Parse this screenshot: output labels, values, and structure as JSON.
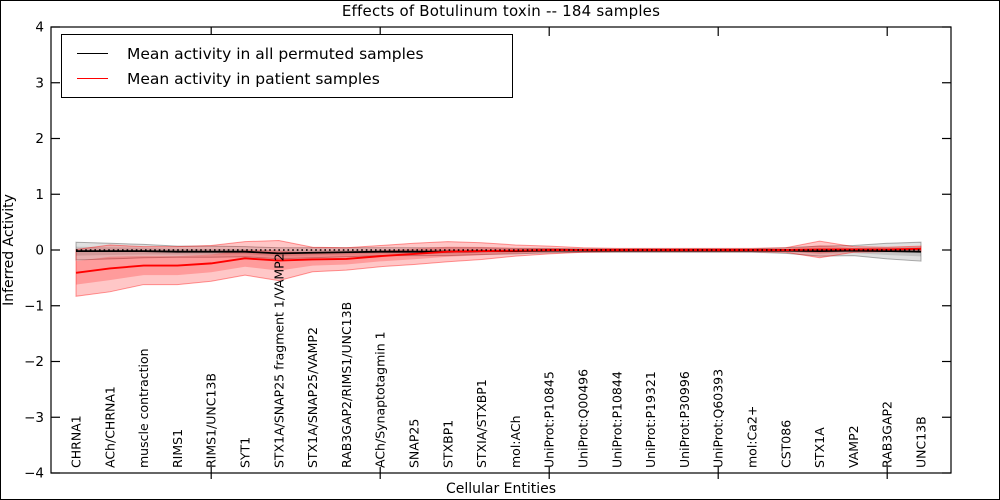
{
  "chart_data": {
    "type": "line",
    "title": "Effects of Botulinum toxin -- 184 samples",
    "xlabel": "Cellular Entities",
    "ylabel": "Inferred Activity",
    "ylim": [
      -4,
      4
    ],
    "yticks": [
      4,
      3,
      2,
      1,
      0,
      -1,
      -2,
      -3,
      -4
    ],
    "x_major_tick_indices": [
      4,
      9,
      14,
      19,
      24
    ],
    "grid": false,
    "legend_position": "upper left",
    "categories": [
      "CHRNA1",
      "ACh/CHRNA1",
      "muscle contraction",
      "RIMS1",
      "RIMS1/UNC13B",
      "SYT1",
      "STX1A/SNAP25 fragment 1/VAMP2",
      "STX1A/SNAP25/VAMP2",
      "RAB3GAP2/RIMS1/UNC13B",
      "ACh/Synaptotagmin 1",
      "SNAP25",
      "STXBP1",
      "STXIA/STXBP1",
      "mol:ACh",
      "UniProt:P10845",
      "UniProt:Q00496",
      "UniProt:P10844",
      "UniProt:P19321",
      "UniProt:P30996",
      "UniProt:Q60393",
      "mol:Ca2+",
      "CST086",
      "STX1A",
      "VAMP2",
      "RAB3GAP2",
      "UNC13B"
    ],
    "zero_reference": {
      "value": 0,
      "style": "dotted",
      "color": "#000000"
    },
    "series": [
      {
        "name": "Mean activity in all permuted samples",
        "color": "#000000",
        "band_color": "#000000",
        "band_opacity": 0.12,
        "mean": [
          -0.02,
          -0.02,
          -0.02,
          -0.03,
          -0.03,
          -0.03,
          -0.06,
          -0.05,
          -0.04,
          -0.03,
          -0.03,
          -0.03,
          -0.02,
          -0.02,
          -0.01,
          -0.01,
          -0.01,
          -0.01,
          -0.01,
          -0.01,
          -0.01,
          -0.01,
          -0.02,
          -0.01,
          -0.02,
          -0.03
        ],
        "sd": [
          0.08,
          0.07,
          0.06,
          0.05,
          0.05,
          0.045,
          0.05,
          0.045,
          0.04,
          0.035,
          0.035,
          0.035,
          0.03,
          0.025,
          0.02,
          0.015,
          0.015,
          0.015,
          0.015,
          0.015,
          0.015,
          0.025,
          0.045,
          0.045,
          0.07,
          0.085
        ]
      },
      {
        "name": "Mean activity in patient samples",
        "color": "#ff0000",
        "band_color": "#ff0000",
        "band_opacity": 0.22,
        "mean": [
          -0.41,
          -0.33,
          -0.28,
          -0.28,
          -0.24,
          -0.15,
          -0.19,
          -0.17,
          -0.16,
          -0.11,
          -0.07,
          -0.03,
          -0.02,
          -0.01,
          0,
          0,
          0,
          0,
          0,
          0,
          0,
          0,
          0.01,
          0.01,
          0.01,
          0.02
        ],
        "sd": [
          0.21,
          0.21,
          0.17,
          0.17,
          0.16,
          0.15,
          0.18,
          0.11,
          0.1,
          0.095,
          0.095,
          0.09,
          0.075,
          0.05,
          0.035,
          0.02,
          0.015,
          0.015,
          0.015,
          0.015,
          0.015,
          0.02,
          0.075,
          0.025,
          0.02,
          0.025
        ]
      }
    ]
  }
}
